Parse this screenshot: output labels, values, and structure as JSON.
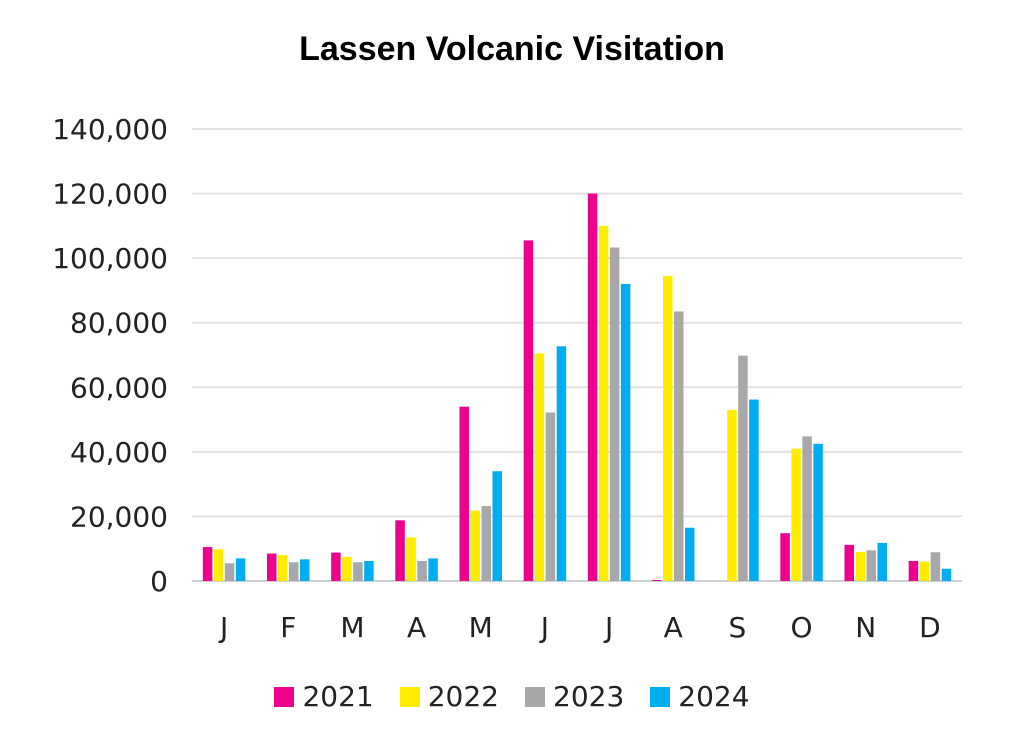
{
  "chart_data": {
    "type": "bar",
    "title": "Lassen Volcanic Visitation",
    "xlabel": "",
    "ylabel": "",
    "categories": [
      "J",
      "F",
      "M",
      "A",
      "M",
      "J",
      "J",
      "A",
      "S",
      "O",
      "N",
      "D"
    ],
    "ylim": [
      0,
      140000
    ],
    "yticks": [
      "0",
      "20,000",
      "40,000",
      "60,000",
      "80,000",
      "100,000",
      "120,000",
      "140,000"
    ],
    "grid": true,
    "legend_position": "bottom",
    "series": [
      {
        "name": "2021",
        "color": "#ec008c",
        "values": [
          10500,
          8500,
          8800,
          18800,
          54000,
          105500,
          120000,
          300,
          0,
          14800,
          11200,
          6200
        ]
      },
      {
        "name": "2022",
        "color": "#ffed00",
        "values": [
          9800,
          8000,
          7500,
          13500,
          21800,
          70500,
          110000,
          94500,
          53000,
          41000,
          9000,
          6000
        ]
      },
      {
        "name": "2023",
        "color": "#a8a8aa",
        "values": [
          5500,
          5800,
          5800,
          6200,
          23200,
          52200,
          103300,
          83500,
          69800,
          44800,
          9500,
          8900
        ]
      },
      {
        "name": "2024",
        "color": "#00aeef",
        "values": [
          7000,
          6700,
          6200,
          7000,
          34000,
          72700,
          92000,
          16500,
          56200,
          42500,
          11800,
          3800
        ]
      }
    ]
  }
}
